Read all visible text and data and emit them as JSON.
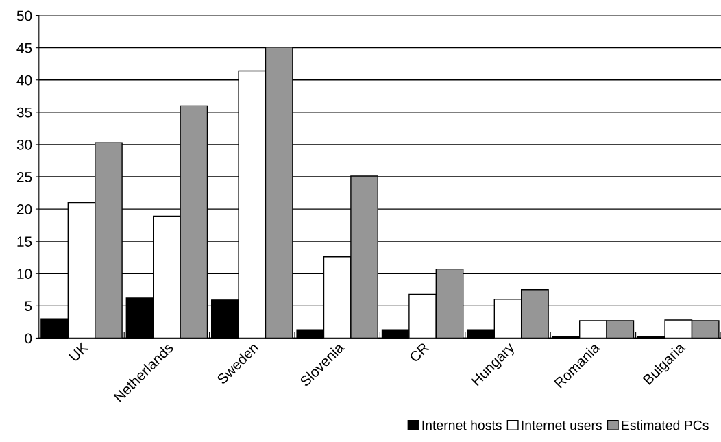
{
  "chart_data": {
    "type": "bar",
    "categories": [
      "UK",
      "Netherlands",
      "Sweden",
      "Slovenia",
      "CR",
      "Hungary",
      "Romania",
      "Bulgaria"
    ],
    "series": [
      {
        "name": "Internet hosts",
        "color": "#000000",
        "values": [
          3.0,
          6.2,
          5.9,
          1.3,
          1.3,
          1.3,
          0.2,
          0.2
        ]
      },
      {
        "name": "Internet users",
        "color": "#ffffff",
        "values": [
          21.0,
          18.9,
          41.4,
          12.6,
          6.8,
          6.0,
          2.7,
          2.8
        ]
      },
      {
        "name": "Estimated PCs",
        "color": "#969696",
        "values": [
          30.3,
          36.0,
          45.1,
          25.1,
          10.7,
          7.5,
          2.7,
          2.7
        ]
      }
    ],
    "ylim": [
      0,
      50
    ],
    "yticks": [
      0,
      5,
      10,
      15,
      20,
      25,
      30,
      35,
      40,
      45,
      50
    ],
    "grid": "y",
    "legend": "bottom right"
  }
}
